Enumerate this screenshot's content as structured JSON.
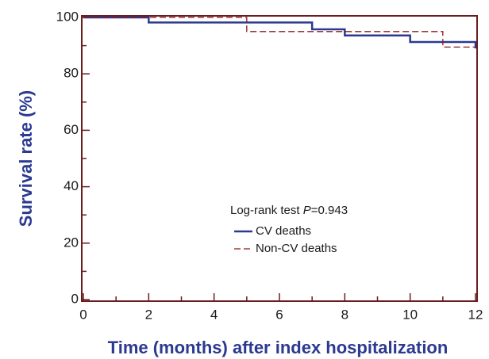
{
  "chart_data": {
    "type": "line",
    "step": "post",
    "xlabel": "Time (months) after index hospitalization",
    "ylabel": "Survival rate (%)",
    "annotation": {
      "text": "Log-rank test ",
      "italic": "P",
      "rest": "=0.943"
    },
    "xlim": [
      0,
      12
    ],
    "ylim": [
      0,
      100
    ],
    "xticks": [
      0,
      2,
      4,
      6,
      8,
      10,
      12
    ],
    "xminorticks": [
      1,
      3,
      5,
      7,
      9,
      11
    ],
    "yticks": [
      0,
      20,
      40,
      60,
      80,
      100
    ],
    "yminorticks": [
      10,
      30,
      50,
      70,
      90
    ],
    "axis_color": "#6b1d1d",
    "series": [
      {
        "name": "CV deaths",
        "color": "#2b3990",
        "dash": false,
        "x": [
          0,
          2,
          7,
          8,
          10,
          12
        ],
        "values": [
          100,
          98.2,
          95.8,
          93.6,
          91.3,
          89
        ]
      },
      {
        "name": "Non-CV deaths",
        "color": "#8b1a1a",
        "dash": true,
        "x": [
          0,
          5,
          11,
          12
        ],
        "values": [
          100,
          95,
          89.5,
          89.5
        ]
      }
    ]
  }
}
